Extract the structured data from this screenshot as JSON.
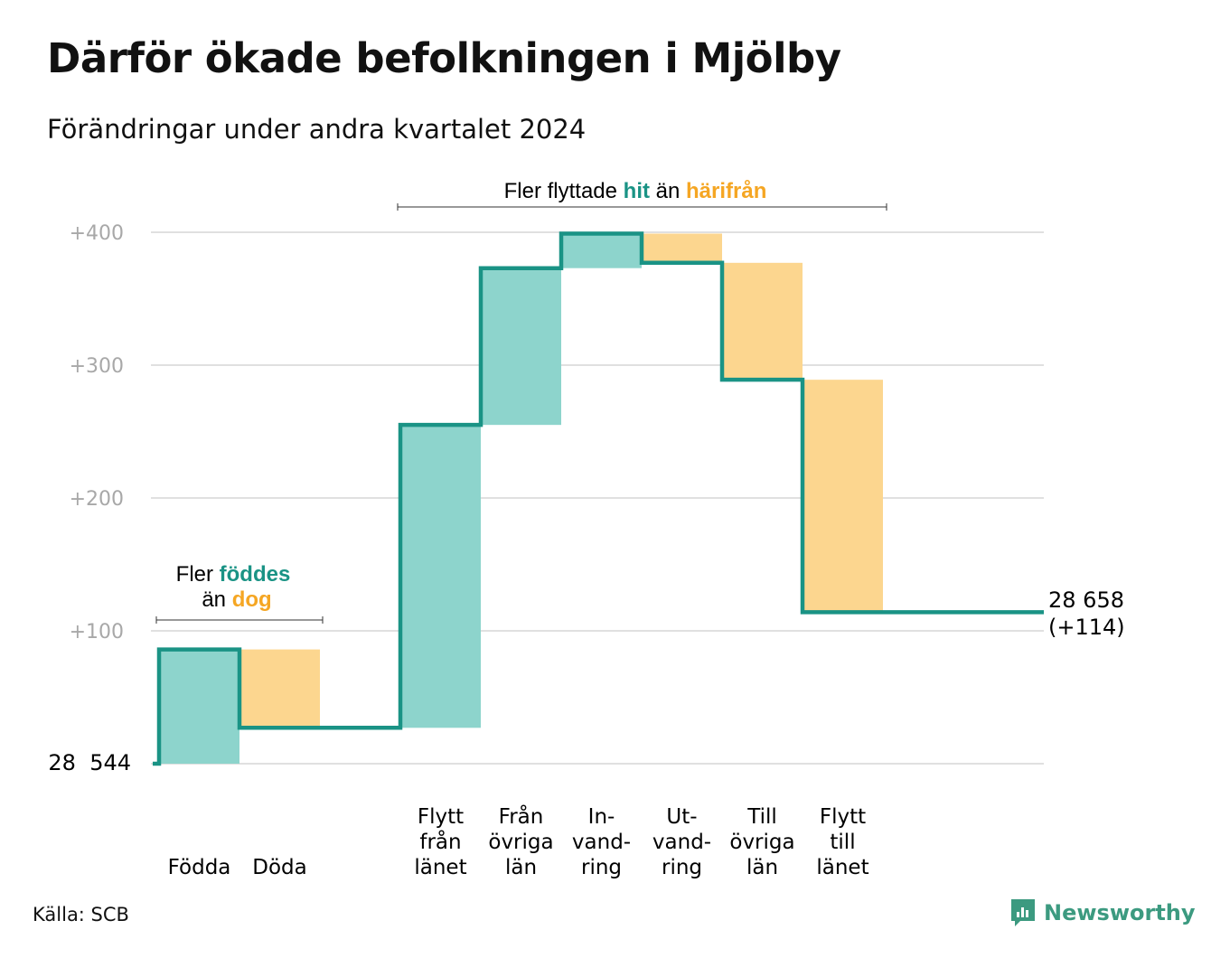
{
  "title": "Därför ökade befolkningen i Mjölby",
  "subtitle": "Förändringar under andra kvartalet 2024",
  "source": "Källa: SCB",
  "brand": "Newsworthy",
  "colors": {
    "line": "#1a9385",
    "increase": "#8dd4cc",
    "decrease": "#fcd68f",
    "hit": "#1a9385",
    "from": "#f5a623",
    "grid": "#e0e0e0",
    "tick": "#a8a8a8",
    "brand": "#3c9a80"
  },
  "annotations": {
    "births": {
      "line1_prefix": "Fler ",
      "line1_highlight": "föddes",
      "line2_prefix": "än ",
      "line2_highlight": "dog"
    },
    "migration": {
      "prefix": "Fler flyttade ",
      "highlight1": "hit",
      "middle": " än ",
      "highlight2": "härifrån"
    }
  },
  "chart_data": {
    "type": "waterfall",
    "base": 28544,
    "base_label": "28  544",
    "end_label_line1": "28 658",
    "end_label_line2": "(+114)",
    "ylim": [
      0,
      400
    ],
    "yticks": [
      {
        "value": 100,
        "label": "+100"
      },
      {
        "value": 200,
        "label": "+200"
      },
      {
        "value": 300,
        "label": "+300"
      },
      {
        "value": 400,
        "label": "+400"
      }
    ],
    "categories": [
      {
        "lines": [
          "Födda"
        ],
        "change": 86
      },
      {
        "lines": [
          "Döda"
        ],
        "change": -59
      },
      {
        "lines": [],
        "change": 0
      },
      {
        "lines": [
          "Flytt",
          "från",
          "länet"
        ],
        "change": 228
      },
      {
        "lines": [
          "Från",
          "övriga",
          "län"
        ],
        "change": 118
      },
      {
        "lines": [
          "In-",
          "vand-",
          "ring"
        ],
        "change": 26
      },
      {
        "lines": [
          "Ut-",
          "vand-",
          "ring"
        ],
        "change": -22
      },
      {
        "lines": [
          "Till",
          "övriga",
          "län"
        ],
        "change": -88
      },
      {
        "lines": [
          "Flytt",
          "till",
          "länet"
        ],
        "change": -175
      }
    ],
    "total_change": 114,
    "grid": true
  }
}
